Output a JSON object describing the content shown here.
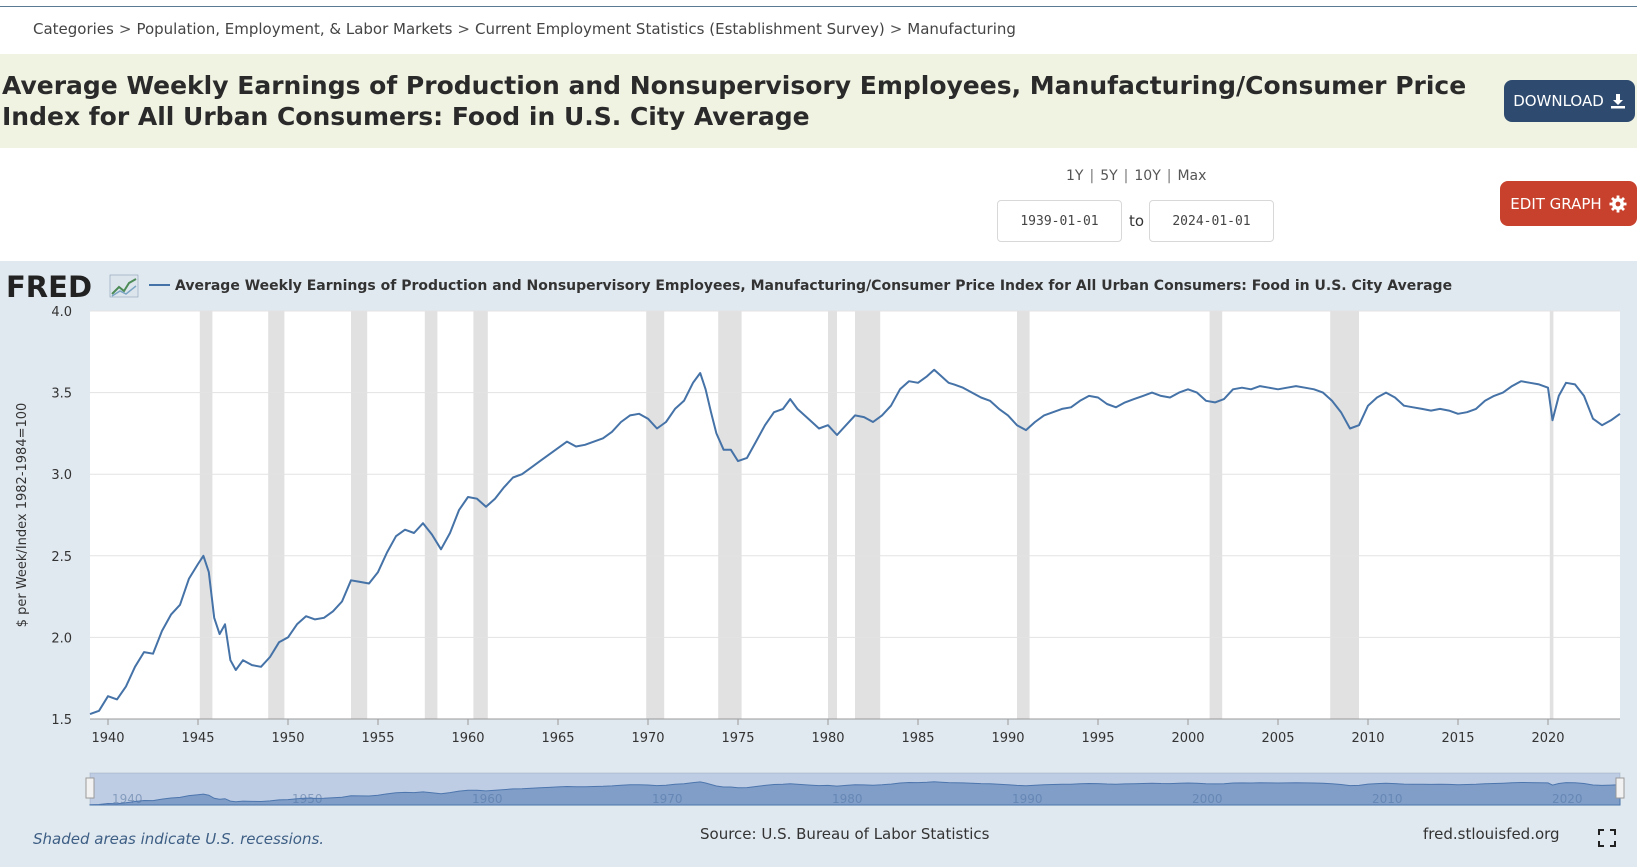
{
  "breadcrumb": {
    "items": [
      "Categories",
      "Population, Employment, & Labor Markets",
      "Current Employment Statistics (Establishment Survey)",
      "Manufacturing"
    ],
    "separator": ">"
  },
  "header": {
    "title": "Average Weekly Earnings of Production and Nonsupervisory Employees, Manufacturing/Consumer Price Index for All Urban Consumers: Food in U.S. City Average",
    "download_label": "DOWNLOAD"
  },
  "controls": {
    "ranges": [
      "1Y",
      "5Y",
      "10Y",
      "Max"
    ],
    "start_date": "1939-01-01",
    "to_label": "to",
    "end_date": "2024-01-01",
    "edit_label": "EDIT GRAPH"
  },
  "footer": {
    "recession_note": "Shaded areas indicate U.S. recessions.",
    "source": "Source: U.S. Bureau of Labor Statistics",
    "site": "fred.stlouisfed.org"
  },
  "colors": {
    "line": "#4572a7",
    "recession": "#e1e1e1",
    "panel": "#e1e9f0",
    "download": "#2e4b6f",
    "edit": "#c7412c"
  },
  "chart_data": {
    "type": "line",
    "brand": "FRED",
    "legend": "Average Weekly Earnings of Production and Nonsupervisory Employees, Manufacturing/Consumer Price Index for All Urban Consumers: Food in U.S. City Average",
    "ylabel": "$ per Week/Index 1982-1984=100",
    "xlabel": "",
    "ylim": [
      1.5,
      4.0
    ],
    "xlim": [
      1939.0,
      2024.0
    ],
    "yticks": [
      1.5,
      2.0,
      2.5,
      3.0,
      3.5,
      4.0
    ],
    "ytick_labels": [
      "1.5",
      "2.0",
      "2.5",
      "3.0",
      "3.5",
      "4.0"
    ],
    "xticks": [
      1940,
      1945,
      1950,
      1955,
      1960,
      1965,
      1970,
      1975,
      1980,
      1985,
      1990,
      1995,
      2000,
      2005,
      2010,
      2015,
      2020
    ],
    "navigator_labels": [
      1940,
      1950,
      1960,
      1970,
      1980,
      1990,
      2000,
      2010,
      2020
    ],
    "recessions": [
      [
        1945.1,
        1945.8
      ],
      [
        1948.9,
        1949.8
      ],
      [
        1953.5,
        1954.4
      ],
      [
        1957.6,
        1958.3
      ],
      [
        1960.3,
        1961.1
      ],
      [
        1969.9,
        1970.9
      ],
      [
        1973.9,
        1975.2
      ],
      [
        1980.0,
        1980.5
      ],
      [
        1981.5,
        1982.9
      ],
      [
        1990.5,
        1991.2
      ],
      [
        2001.2,
        2001.9
      ],
      [
        2007.9,
        2009.5
      ],
      [
        2020.1,
        2020.3
      ]
    ],
    "series": [
      {
        "name": "Average Weekly Earnings of Production and Nonsupervisory Employees, Manufacturing/Consumer Price Index for All Urban Consumers: Food in U.S. City Average",
        "points": [
          [
            1939.0,
            1.53
          ],
          [
            1939.5,
            1.55
          ],
          [
            1940.0,
            1.64
          ],
          [
            1940.5,
            1.62
          ],
          [
            1941.0,
            1.7
          ],
          [
            1941.5,
            1.82
          ],
          [
            1942.0,
            1.91
          ],
          [
            1942.5,
            1.9
          ],
          [
            1943.0,
            2.04
          ],
          [
            1943.5,
            2.14
          ],
          [
            1944.0,
            2.2
          ],
          [
            1944.5,
            2.36
          ],
          [
            1945.0,
            2.45
          ],
          [
            1945.3,
            2.5
          ],
          [
            1945.6,
            2.4
          ],
          [
            1945.9,
            2.12
          ],
          [
            1946.2,
            2.02
          ],
          [
            1946.5,
            2.08
          ],
          [
            1946.8,
            1.86
          ],
          [
            1947.1,
            1.8
          ],
          [
            1947.5,
            1.86
          ],
          [
            1948.0,
            1.83
          ],
          [
            1948.5,
            1.82
          ],
          [
            1949.0,
            1.88
          ],
          [
            1949.5,
            1.97
          ],
          [
            1950.0,
            2.0
          ],
          [
            1950.5,
            2.08
          ],
          [
            1951.0,
            2.13
          ],
          [
            1951.5,
            2.11
          ],
          [
            1952.0,
            2.12
          ],
          [
            1952.5,
            2.16
          ],
          [
            1953.0,
            2.22
          ],
          [
            1953.5,
            2.35
          ],
          [
            1954.0,
            2.34
          ],
          [
            1954.5,
            2.33
          ],
          [
            1955.0,
            2.4
          ],
          [
            1955.5,
            2.52
          ],
          [
            1956.0,
            2.62
          ],
          [
            1956.5,
            2.66
          ],
          [
            1957.0,
            2.64
          ],
          [
            1957.5,
            2.7
          ],
          [
            1958.0,
            2.63
          ],
          [
            1958.5,
            2.54
          ],
          [
            1959.0,
            2.64
          ],
          [
            1959.5,
            2.78
          ],
          [
            1960.0,
            2.86
          ],
          [
            1960.5,
            2.85
          ],
          [
            1961.0,
            2.8
          ],
          [
            1961.5,
            2.85
          ],
          [
            1962.0,
            2.92
          ],
          [
            1962.5,
            2.98
          ],
          [
            1963.0,
            3.0
          ],
          [
            1963.5,
            3.04
          ],
          [
            1964.0,
            3.08
          ],
          [
            1964.5,
            3.12
          ],
          [
            1965.0,
            3.16
          ],
          [
            1965.5,
            3.2
          ],
          [
            1966.0,
            3.17
          ],
          [
            1966.5,
            3.18
          ],
          [
            1967.0,
            3.2
          ],
          [
            1967.5,
            3.22
          ],
          [
            1968.0,
            3.26
          ],
          [
            1968.5,
            3.32
          ],
          [
            1969.0,
            3.36
          ],
          [
            1969.5,
            3.37
          ],
          [
            1970.0,
            3.34
          ],
          [
            1970.5,
            3.28
          ],
          [
            1971.0,
            3.32
          ],
          [
            1971.5,
            3.4
          ],
          [
            1972.0,
            3.45
          ],
          [
            1972.5,
            3.56
          ],
          [
            1972.9,
            3.62
          ],
          [
            1973.2,
            3.52
          ],
          [
            1973.5,
            3.38
          ],
          [
            1973.8,
            3.25
          ],
          [
            1974.2,
            3.15
          ],
          [
            1974.6,
            3.15
          ],
          [
            1975.0,
            3.08
          ],
          [
            1975.5,
            3.1
          ],
          [
            1976.0,
            3.2
          ],
          [
            1976.5,
            3.3
          ],
          [
            1977.0,
            3.38
          ],
          [
            1977.5,
            3.4
          ],
          [
            1977.9,
            3.46
          ],
          [
            1978.3,
            3.4
          ],
          [
            1978.7,
            3.36
          ],
          [
            1979.0,
            3.33
          ],
          [
            1979.5,
            3.28
          ],
          [
            1980.0,
            3.3
          ],
          [
            1980.5,
            3.24
          ],
          [
            1981.0,
            3.3
          ],
          [
            1981.5,
            3.36
          ],
          [
            1982.0,
            3.35
          ],
          [
            1982.5,
            3.32
          ],
          [
            1983.0,
            3.36
          ],
          [
            1983.5,
            3.42
          ],
          [
            1984.0,
            3.52
          ],
          [
            1984.5,
            3.57
          ],
          [
            1985.0,
            3.56
          ],
          [
            1985.5,
            3.6
          ],
          [
            1985.9,
            3.64
          ],
          [
            1986.3,
            3.6
          ],
          [
            1986.7,
            3.56
          ],
          [
            1987.0,
            3.55
          ],
          [
            1987.5,
            3.53
          ],
          [
            1988.0,
            3.5
          ],
          [
            1988.5,
            3.47
          ],
          [
            1989.0,
            3.45
          ],
          [
            1989.5,
            3.4
          ],
          [
            1990.0,
            3.36
          ],
          [
            1990.5,
            3.3
          ],
          [
            1991.0,
            3.27
          ],
          [
            1991.5,
            3.32
          ],
          [
            1992.0,
            3.36
          ],
          [
            1992.5,
            3.38
          ],
          [
            1993.0,
            3.4
          ],
          [
            1993.5,
            3.41
          ],
          [
            1994.0,
            3.45
          ],
          [
            1994.5,
            3.48
          ],
          [
            1995.0,
            3.47
          ],
          [
            1995.5,
            3.43
          ],
          [
            1996.0,
            3.41
          ],
          [
            1996.5,
            3.44
          ],
          [
            1997.0,
            3.46
          ],
          [
            1997.5,
            3.48
          ],
          [
            1998.0,
            3.5
          ],
          [
            1998.5,
            3.48
          ],
          [
            1999.0,
            3.47
          ],
          [
            1999.5,
            3.5
          ],
          [
            2000.0,
            3.52
          ],
          [
            2000.5,
            3.5
          ],
          [
            2001.0,
            3.45
          ],
          [
            2001.5,
            3.44
          ],
          [
            2002.0,
            3.46
          ],
          [
            2002.5,
            3.52
          ],
          [
            2003.0,
            3.53
          ],
          [
            2003.5,
            3.52
          ],
          [
            2004.0,
            3.54
          ],
          [
            2004.5,
            3.53
          ],
          [
            2005.0,
            3.52
          ],
          [
            2005.5,
            3.53
          ],
          [
            2006.0,
            3.54
          ],
          [
            2006.5,
            3.53
          ],
          [
            2007.0,
            3.52
          ],
          [
            2007.5,
            3.5
          ],
          [
            2008.0,
            3.45
          ],
          [
            2008.5,
            3.38
          ],
          [
            2009.0,
            3.28
          ],
          [
            2009.5,
            3.3
          ],
          [
            2010.0,
            3.42
          ],
          [
            2010.5,
            3.47
          ],
          [
            2011.0,
            3.5
          ],
          [
            2011.5,
            3.47
          ],
          [
            2012.0,
            3.42
          ],
          [
            2012.5,
            3.41
          ],
          [
            2013.0,
            3.4
          ],
          [
            2013.5,
            3.39
          ],
          [
            2014.0,
            3.4
          ],
          [
            2014.5,
            3.39
          ],
          [
            2015.0,
            3.37
          ],
          [
            2015.5,
            3.38
          ],
          [
            2016.0,
            3.4
          ],
          [
            2016.5,
            3.45
          ],
          [
            2017.0,
            3.48
          ],
          [
            2017.5,
            3.5
          ],
          [
            2018.0,
            3.54
          ],
          [
            2018.5,
            3.57
          ],
          [
            2019.0,
            3.56
          ],
          [
            2019.5,
            3.55
          ],
          [
            2020.0,
            3.53
          ],
          [
            2020.25,
            3.33
          ],
          [
            2020.6,
            3.48
          ],
          [
            2021.0,
            3.56
          ],
          [
            2021.5,
            3.55
          ],
          [
            2022.0,
            3.48
          ],
          [
            2022.5,
            3.34
          ],
          [
            2023.0,
            3.3
          ],
          [
            2023.5,
            3.33
          ],
          [
            2024.0,
            3.37
          ]
        ]
      }
    ]
  }
}
